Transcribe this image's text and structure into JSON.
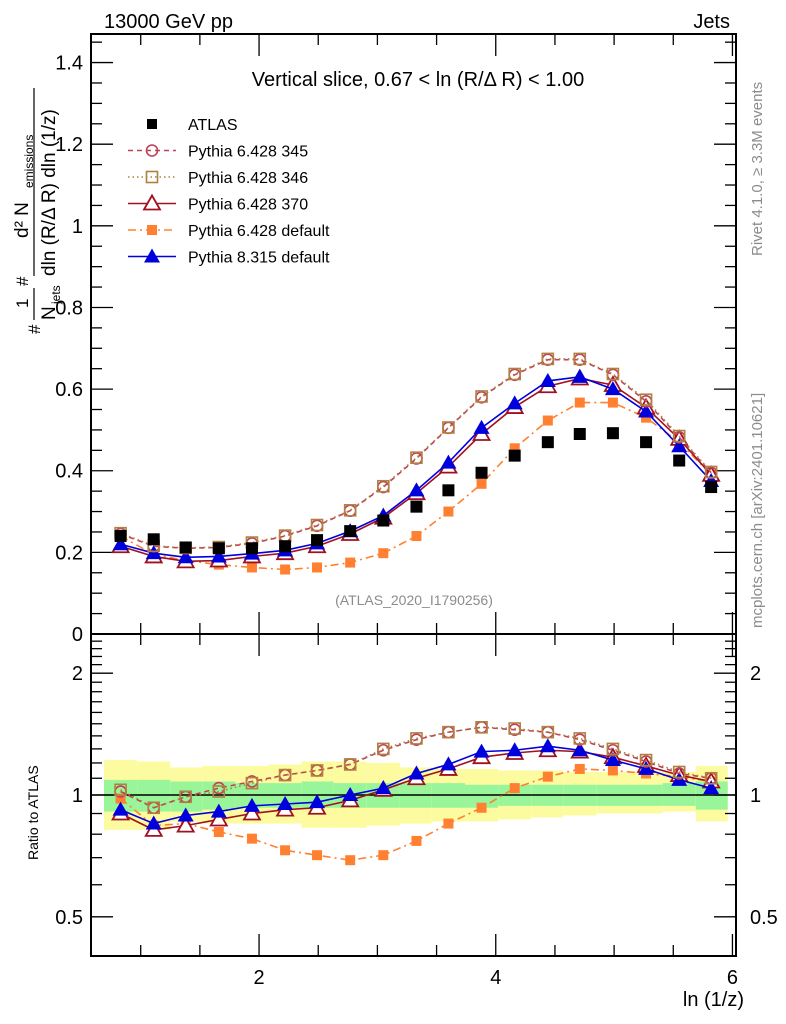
{
  "header": {
    "left": "13000 GeV pp",
    "right": "Jets"
  },
  "side_labels": {
    "rivet": "Rivet 4.1.0, ≥ 3.3M events",
    "mcplots": "mcplots.cern.ch [arXiv:2401.10621]"
  },
  "chart_data": [
    {
      "type": "line",
      "panel": "main",
      "title": "Vertical slice, 0.67 < ln (R/Δ R) < 1.00",
      "watermark": "(ATLAS_2020_I1790256)",
      "xlabel": "ln (1/z)",
      "ylabel": {
        "numerator": "d² N",
        "numerator_sub": "emissions",
        "denominator": "dln (R/Δ R) dln (1/z)",
        "prefactor_num": "1",
        "prefactor_den": "N",
        "prefactor_sub": "jets"
      },
      "xlim": [
        0.58,
        6.03
      ],
      "ylim": [
        0,
        1.47
      ],
      "yticks": [
        0,
        0.2,
        0.4,
        0.6,
        0.8,
        1,
        1.2,
        1.4
      ],
      "ytick_labels": [
        "0",
        "0.2",
        "0.4",
        "0.6",
        "0.8",
        "1",
        "1.2",
        "1.4"
      ],
      "xticks": [
        2,
        4,
        6
      ],
      "xtick_labels": [
        "2",
        "4",
        "6"
      ],
      "legend_position": "top-left",
      "x": [
        0.83,
        1.11,
        1.38,
        1.66,
        1.94,
        2.22,
        2.49,
        2.77,
        3.05,
        3.33,
        3.6,
        3.88,
        4.16,
        4.44,
        4.71,
        4.99,
        5.27,
        5.55,
        5.82
      ],
      "series": [
        {
          "name": "ATLAS",
          "color": "#000000",
          "marker": "square-filled",
          "line": "none",
          "values": [
            0.24,
            0.232,
            0.212,
            0.21,
            0.21,
            0.215,
            0.23,
            0.252,
            0.278,
            0.312,
            0.352,
            0.395,
            0.437,
            0.47,
            0.49,
            0.492,
            0.47,
            0.425,
            0.36
          ]
        },
        {
          "name": "Pythia 6.428 345",
          "color": "#c0405a",
          "marker": "circle-open",
          "line": "dashed",
          "values": [
            0.245,
            0.215,
            0.21,
            0.212,
            0.222,
            0.24,
            0.265,
            0.302,
            0.36,
            0.43,
            0.505,
            0.58,
            0.635,
            0.672,
            0.672,
            0.635,
            0.57,
            0.482,
            0.395
          ]
        },
        {
          "name": "Pythia 6.428 346",
          "color": "#b08040",
          "marker": "square-open",
          "line": "dotted",
          "values": [
            0.247,
            0.216,
            0.211,
            0.213,
            0.224,
            0.241,
            0.267,
            0.303,
            0.362,
            0.432,
            0.506,
            0.582,
            0.637,
            0.674,
            0.674,
            0.637,
            0.574,
            0.485,
            0.397
          ]
        },
        {
          "name": "Pythia 6.428 370",
          "color": "#a01020",
          "marker": "triangle-open",
          "line": "solid",
          "values": [
            0.215,
            0.19,
            0.178,
            0.18,
            0.19,
            0.198,
            0.215,
            0.245,
            0.285,
            0.345,
            0.41,
            0.49,
            0.556,
            0.607,
            0.626,
            0.61,
            0.555,
            0.478,
            0.39
          ]
        },
        {
          "name": "Pythia 6.428 default",
          "color": "#ff8030",
          "marker": "square-filled-small",
          "line": "dashdot",
          "values": [
            0.24,
            0.195,
            0.18,
            0.17,
            0.163,
            0.158,
            0.163,
            0.175,
            0.198,
            0.24,
            0.3,
            0.368,
            0.455,
            0.523,
            0.567,
            0.567,
            0.53,
            0.47,
            0.39
          ]
        },
        {
          "name": "Pythia 8.315 default",
          "color": "#0000dd",
          "marker": "triangle-filled",
          "line": "solid",
          "values": [
            0.22,
            0.198,
            0.188,
            0.19,
            0.197,
            0.205,
            0.222,
            0.252,
            0.29,
            0.352,
            0.42,
            0.505,
            0.565,
            0.62,
            0.63,
            0.6,
            0.545,
            0.46,
            0.375
          ]
        }
      ]
    },
    {
      "type": "line",
      "panel": "ratio",
      "ylabel": "Ratio to ATLAS",
      "xlabel": "ln (1/z)",
      "yscale": "log",
      "ylim": [
        0.4,
        2.5
      ],
      "yticks": [
        0.5,
        1,
        2
      ],
      "ytick_labels": [
        "0.5",
        "1",
        "2"
      ],
      "xticks": [
        2,
        4,
        6
      ],
      "xtick_labels": [
        "2",
        "4",
        "6"
      ],
      "reference_line": 1,
      "bands": {
        "colors": {
          "inner": "#99f599",
          "outer": "#fdfb9f"
        },
        "x_edges": [
          0.69,
          0.97,
          1.25,
          1.52,
          1.8,
          2.08,
          2.36,
          2.63,
          2.91,
          3.19,
          3.46,
          3.74,
          4.02,
          4.3,
          4.57,
          4.85,
          5.13,
          5.41,
          5.69,
          5.96
        ],
        "inner_lo": [
          0.91,
          0.91,
          0.91,
          0.92,
          0.93,
          0.93,
          0.93,
          0.93,
          0.93,
          0.93,
          0.93,
          0.93,
          0.94,
          0.94,
          0.94,
          0.94,
          0.94,
          0.94,
          0.92
        ],
        "inner_hi": [
          1.09,
          1.09,
          1.08,
          1.08,
          1.07,
          1.07,
          1.08,
          1.07,
          1.07,
          1.07,
          1.07,
          1.06,
          1.06,
          1.06,
          1.06,
          1.06,
          1.06,
          1.07,
          1.08
        ],
        "outer_lo": [
          0.82,
          0.82,
          0.86,
          0.85,
          0.85,
          0.85,
          0.83,
          0.83,
          0.84,
          0.85,
          0.86,
          0.86,
          0.87,
          0.88,
          0.89,
          0.9,
          0.9,
          0.91,
          0.86
        ],
        "outer_hi": [
          1.22,
          1.21,
          1.17,
          1.18,
          1.18,
          1.19,
          1.21,
          1.21,
          1.2,
          1.17,
          1.16,
          1.16,
          1.15,
          1.15,
          1.14,
          1.14,
          1.14,
          1.14,
          1.18
        ]
      },
      "x": [
        0.83,
        1.11,
        1.38,
        1.66,
        1.94,
        2.22,
        2.49,
        2.77,
        3.05,
        3.33,
        3.6,
        3.88,
        4.16,
        4.44,
        4.71,
        4.99,
        5.27,
        5.55,
        5.82
      ],
      "series": [
        {
          "name": "Pythia 6.428 345",
          "values": [
            1.02,
            0.93,
            0.99,
            1.04,
            1.08,
            1.12,
            1.15,
            1.19,
            1.29,
            1.37,
            1.43,
            1.47,
            1.45,
            1.43,
            1.37,
            1.29,
            1.21,
            1.13,
            1.1
          ]
        },
        {
          "name": "Pythia 6.428 346",
          "values": [
            1.03,
            0.93,
            0.99,
            1.02,
            1.07,
            1.12,
            1.15,
            1.19,
            1.3,
            1.38,
            1.43,
            1.47,
            1.46,
            1.43,
            1.38,
            1.3,
            1.22,
            1.14,
            1.1
          ]
        },
        {
          "name": "Pythia 6.428 370",
          "values": [
            0.9,
            0.82,
            0.84,
            0.87,
            0.9,
            0.92,
            0.93,
            0.97,
            1.03,
            1.1,
            1.16,
            1.24,
            1.27,
            1.29,
            1.28,
            1.24,
            1.18,
            1.12,
            1.08
          ]
        },
        {
          "name": "Pythia 6.428 default",
          "values": [
            0.98,
            0.84,
            0.85,
            0.81,
            0.78,
            0.73,
            0.71,
            0.69,
            0.71,
            0.77,
            0.85,
            0.93,
            1.04,
            1.11,
            1.16,
            1.15,
            1.13,
            1.11,
            1.08
          ]
        },
        {
          "name": "Pythia 8.315 default",
          "values": [
            0.92,
            0.85,
            0.89,
            0.91,
            0.94,
            0.95,
            0.96,
            1.0,
            1.04,
            1.13,
            1.19,
            1.28,
            1.29,
            1.32,
            1.29,
            1.22,
            1.16,
            1.09,
            1.04
          ]
        }
      ]
    }
  ]
}
